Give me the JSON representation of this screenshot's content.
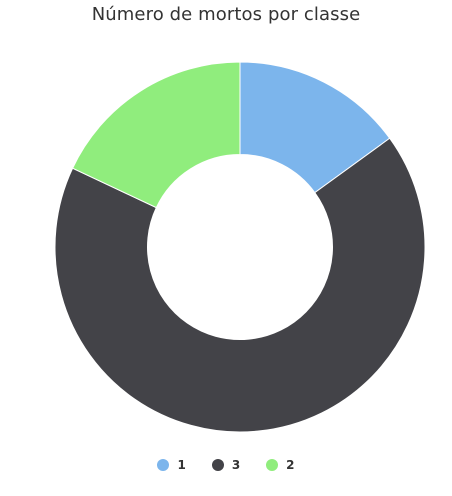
{
  "chart_data": {
    "type": "pie",
    "title": "Número de mortos por classe",
    "categories": [
      "1",
      "3",
      "2"
    ],
    "values": [
      15,
      67,
      18
    ],
    "colors": [
      "#7cb5ec",
      "#434348",
      "#90ed7d"
    ],
    "inner_radius_fraction": 0.5,
    "legend": "bottom-center"
  }
}
